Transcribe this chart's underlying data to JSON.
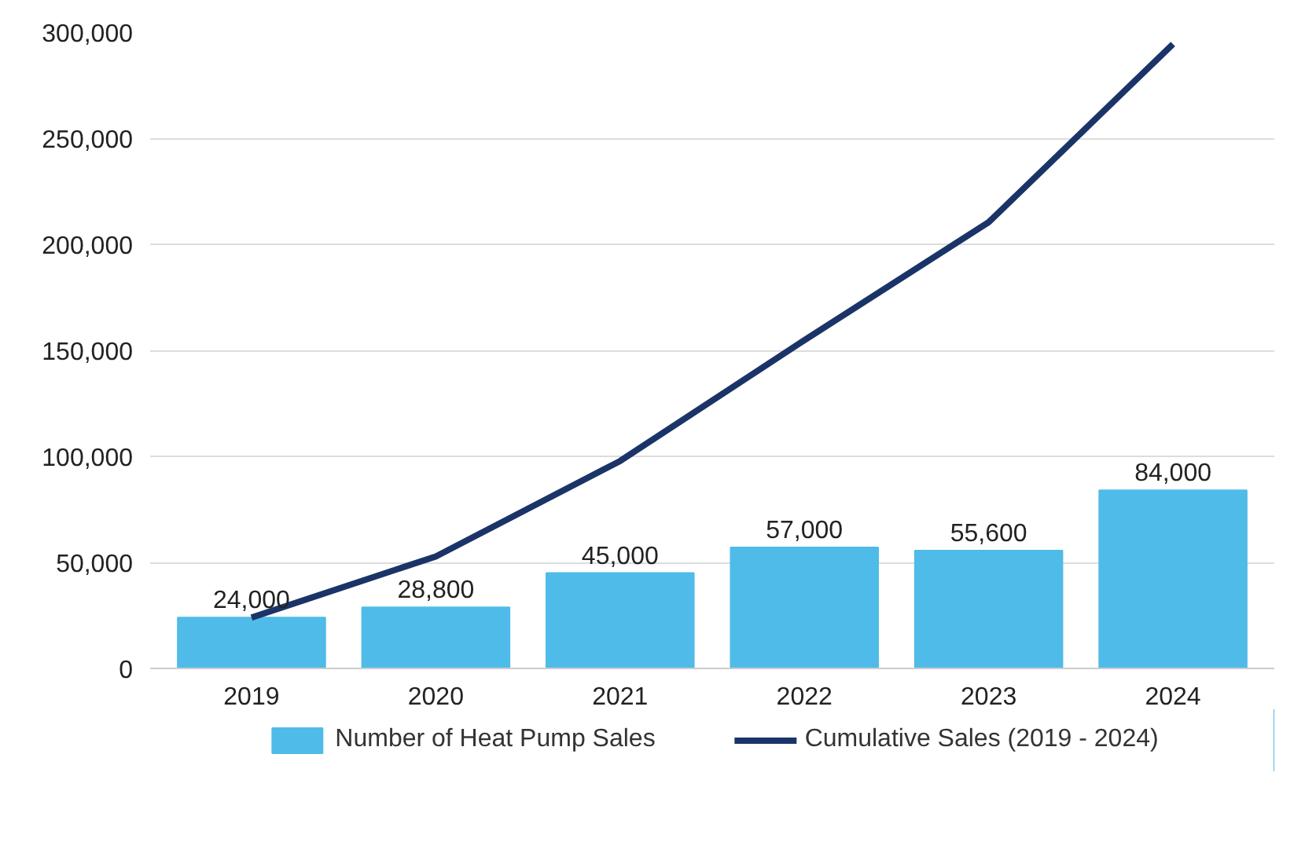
{
  "chart_data": {
    "type": "bar",
    "categories": [
      "2019",
      "2020",
      "2021",
      "2022",
      "2023",
      "2024"
    ],
    "series": [
      {
        "name": "Number of Heat Pump Sales",
        "color": "#4fbbe8",
        "values": [
          24000,
          28800,
          45000,
          57000,
          55600,
          84000
        ],
        "value_labels": [
          "24,000",
          "28,800",
          "45,000",
          "57,000",
          "55,600",
          "84,000"
        ]
      },
      {
        "name": "Cumulative Sales (2019 - 2024)",
        "type": "line",
        "color": "#1b3468",
        "values": [
          24000,
          52800,
          97800,
          154800,
          210400,
          294400
        ]
      }
    ],
    "ylim": [
      0,
      300000
    ],
    "yticks": [
      {
        "value": 0,
        "label": "0"
      },
      {
        "value": 50000,
        "label": "50,000"
      },
      {
        "value": 100000,
        "label": "100,000"
      },
      {
        "value": 150000,
        "label": "150,000"
      },
      {
        "value": 200000,
        "label": "200,000"
      },
      {
        "value": 250000,
        "label": "250,000"
      },
      {
        "value": 300000,
        "label": "300,000"
      }
    ],
    "grid": "y",
    "legend": "bottom"
  }
}
